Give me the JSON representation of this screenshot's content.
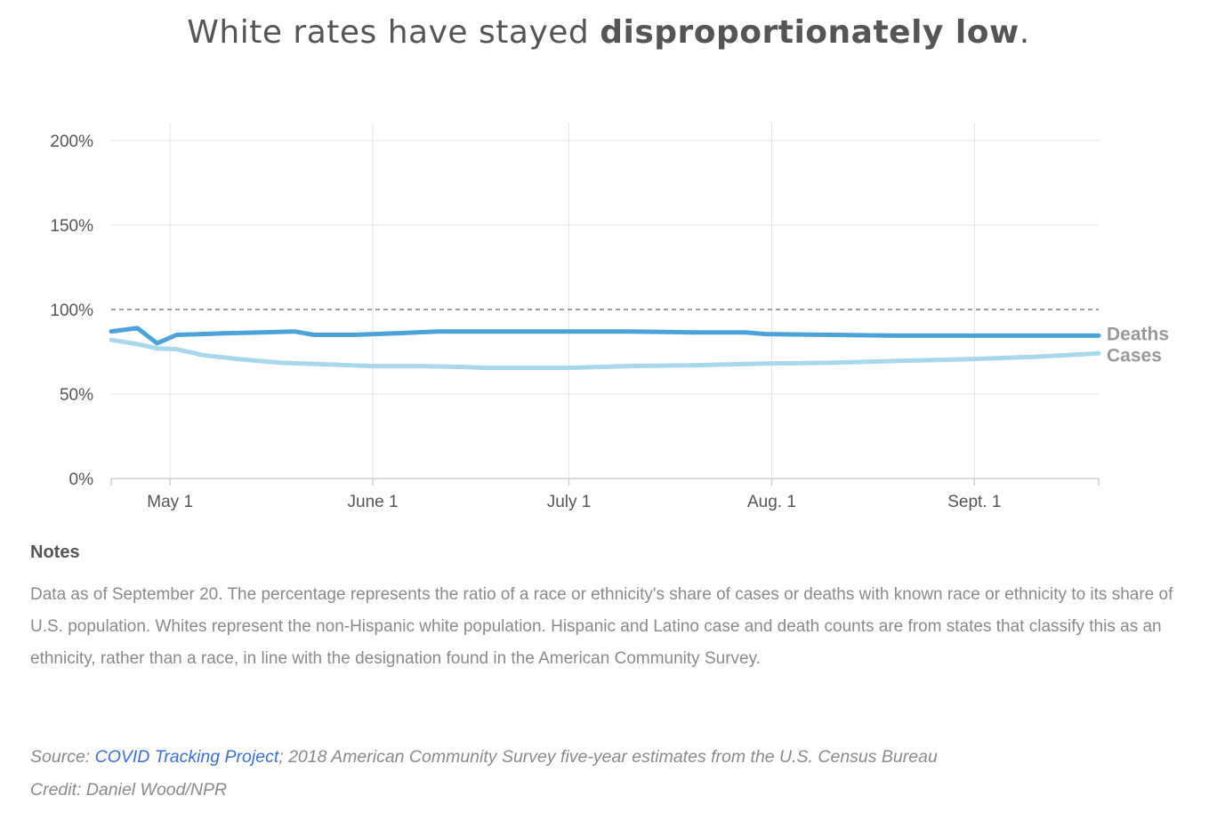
{
  "title": {
    "prefix": "White rates have stayed ",
    "emphasis": "disproportionately low",
    "suffix": "."
  },
  "chart_data": {
    "type": "line",
    "ylim": [
      0,
      220
    ],
    "yticks": [
      {
        "value": 0,
        "label": "0%"
      },
      {
        "value": 50,
        "label": "50%"
      },
      {
        "value": 100,
        "label": "100%"
      },
      {
        "value": 150,
        "label": "150%"
      },
      {
        "value": 200,
        "label": "200%"
      }
    ],
    "xlim": [
      "2020-04-22",
      "2020-09-20"
    ],
    "xticks": [
      {
        "value": "2020-05-01",
        "label": "May 1"
      },
      {
        "value": "2020-06-01",
        "label": "June 1"
      },
      {
        "value": "2020-07-01",
        "label": "July 1"
      },
      {
        "value": "2020-08-01",
        "label": "Aug. 1"
      },
      {
        "value": "2020-09-01",
        "label": "Sept. 1"
      }
    ],
    "reference_line": {
      "value": 100,
      "style": "dashed"
    },
    "grid": true,
    "series": [
      {
        "name": "Deaths",
        "color": "#4ba3d9",
        "points": [
          [
            "2020-04-22",
            87
          ],
          [
            "2020-04-26",
            89
          ],
          [
            "2020-04-29",
            80
          ],
          [
            "2020-05-02",
            85
          ],
          [
            "2020-05-06",
            85.5
          ],
          [
            "2020-05-10",
            86
          ],
          [
            "2020-05-15",
            86.5
          ],
          [
            "2020-05-20",
            87
          ],
          [
            "2020-05-23",
            85
          ],
          [
            "2020-05-29",
            85
          ],
          [
            "2020-06-05",
            86
          ],
          [
            "2020-06-11",
            87
          ],
          [
            "2020-06-20",
            87
          ],
          [
            "2020-06-30",
            87
          ],
          [
            "2020-07-10",
            87
          ],
          [
            "2020-07-20",
            86.5
          ],
          [
            "2020-07-28",
            86.5
          ],
          [
            "2020-07-31",
            85.5
          ],
          [
            "2020-08-10",
            85
          ],
          [
            "2020-08-20",
            84.5
          ],
          [
            "2020-08-30",
            84.5
          ],
          [
            "2020-09-10",
            84.5
          ],
          [
            "2020-09-20",
            84.5
          ]
        ]
      },
      {
        "name": "Cases",
        "color": "#a8d8ee",
        "points": [
          [
            "2020-04-22",
            82
          ],
          [
            "2020-04-26",
            79.5
          ],
          [
            "2020-04-29",
            77
          ],
          [
            "2020-05-02",
            76.5
          ],
          [
            "2020-05-06",
            73
          ],
          [
            "2020-05-12",
            70.5
          ],
          [
            "2020-05-18",
            68.5
          ],
          [
            "2020-05-25",
            67.5
          ],
          [
            "2020-06-01",
            66.5
          ],
          [
            "2020-06-08",
            66.5
          ],
          [
            "2020-06-15",
            66
          ],
          [
            "2020-06-18",
            65.5
          ],
          [
            "2020-06-25",
            65.5
          ],
          [
            "2020-07-01",
            65.5
          ],
          [
            "2020-07-10",
            66.5
          ],
          [
            "2020-07-20",
            67
          ],
          [
            "2020-07-31",
            68
          ],
          [
            "2020-08-10",
            68.5
          ],
          [
            "2020-08-20",
            69.5
          ],
          [
            "2020-08-30",
            70.5
          ],
          [
            "2020-09-10",
            72
          ],
          [
            "2020-09-20",
            74
          ]
        ]
      }
    ]
  },
  "notes": {
    "heading": "Notes",
    "body": "Data as of September 20. The percentage represents the ratio of a race or ethnicity's share of cases or deaths with known race or ethnicity to its share of U.S. population. Whites represent the non-Hispanic white population. Hispanic and Latino case and death counts are from states that classify this as an ethnicity, rather than a race, in line with the designation found in the American Community Survey."
  },
  "source": {
    "label": "Source: ",
    "link_text": "COVID Tracking Project",
    "rest": "; 2018 American Community Survey five-year estimates from the U.S. Census Bureau"
  },
  "credit": "Credit: Daniel Wood/NPR"
}
